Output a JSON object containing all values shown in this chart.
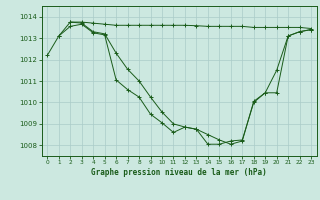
{
  "background_color": "#cce8e0",
  "grid_color": "#aaccc8",
  "line_color": "#1a5c1a",
  "marker_color": "#1a5c1a",
  "title": "Graphe pression niveau de la mer (hPa)",
  "xlim": [
    -0.5,
    23.5
  ],
  "ylim": [
    1007.5,
    1014.5
  ],
  "yticks": [
    1008,
    1009,
    1010,
    1011,
    1012,
    1013,
    1014
  ],
  "xticks": [
    0,
    1,
    2,
    3,
    4,
    5,
    6,
    7,
    8,
    9,
    10,
    11,
    12,
    13,
    14,
    15,
    16,
    17,
    18,
    19,
    20,
    21,
    22,
    23
  ],
  "series1_x": [
    0,
    1,
    2,
    3,
    4,
    5,
    6,
    7,
    8,
    9,
    10,
    11,
    12,
    13,
    14,
    15,
    16,
    17,
    18,
    19,
    20,
    21,
    22,
    23
  ],
  "series1_y": [
    1012.2,
    1013.1,
    1013.55,
    1013.65,
    1013.25,
    1013.15,
    1011.05,
    1010.6,
    1010.25,
    1009.45,
    1009.05,
    1008.6,
    1008.85,
    1008.75,
    1008.05,
    1008.05,
    1008.2,
    1008.25,
    1010.0,
    1010.45,
    1011.5,
    1013.1,
    1013.3,
    1013.4
  ],
  "series2_x": [
    2,
    3,
    4,
    5,
    6,
    7,
    8,
    9,
    10,
    11,
    12,
    13,
    14,
    15,
    16,
    17,
    18,
    19,
    20,
    21,
    22,
    23
  ],
  "series2_y": [
    1013.75,
    1013.75,
    1013.7,
    1013.65,
    1013.6,
    1013.6,
    1013.6,
    1013.6,
    1013.6,
    1013.6,
    1013.6,
    1013.58,
    1013.55,
    1013.55,
    1013.55,
    1013.55,
    1013.5,
    1013.5,
    1013.5,
    1013.5,
    1013.5,
    1013.45
  ],
  "series3_x": [
    1,
    2,
    3,
    4,
    5,
    6,
    7,
    8,
    9,
    10,
    11,
    12,
    13,
    14,
    15,
    16,
    17,
    18,
    19,
    20,
    21,
    22,
    23
  ],
  "series3_y": [
    1013.1,
    1013.75,
    1013.7,
    1013.3,
    1013.2,
    1012.3,
    1011.55,
    1011.0,
    1010.25,
    1009.55,
    1009.0,
    1008.85,
    1008.75,
    1008.5,
    1008.25,
    1008.05,
    1008.2,
    1010.05,
    1010.45,
    1010.45,
    1013.1,
    1013.3,
    1013.4
  ]
}
